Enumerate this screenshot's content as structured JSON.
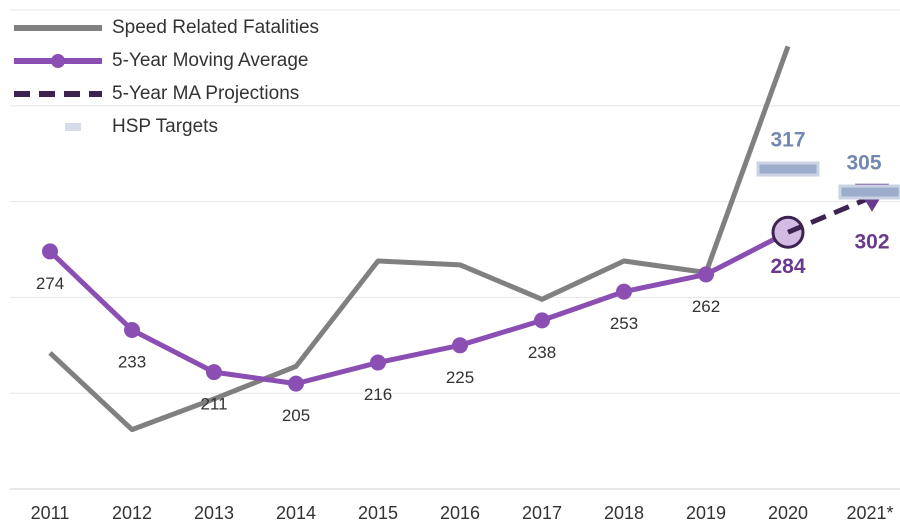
{
  "chart_data": {
    "type": "line",
    "categories": [
      "2011",
      "2012",
      "2013",
      "2014",
      "2015",
      "2016",
      "2017",
      "2018",
      "2019",
      "2020",
      "2021*"
    ],
    "ylim": [
      150,
      400
    ],
    "yticks": [
      150,
      200,
      250,
      300,
      350,
      400
    ],
    "grid": true,
    "legend": "upper left",
    "series": [
      {
        "name": "Speed Related Fatalities",
        "color": "#808080",
        "marker": "none",
        "values": [
          221,
          181,
          197,
          214,
          269,
          267,
          249,
          269,
          263,
          381,
          null
        ]
      },
      {
        "name": "5-Year Moving Average",
        "color": "#8b4fb3",
        "marker": "circle",
        "values": [
          274,
          233,
          211,
          205,
          216,
          225,
          238,
          253,
          262,
          284,
          null
        ]
      },
      {
        "name": "5-Year MA Projections",
        "color": "#3e2350",
        "marker": "triangle",
        "dashed": true,
        "values": [
          null,
          null,
          null,
          null,
          null,
          null,
          null,
          null,
          null,
          284,
          302
        ]
      },
      {
        "name": "HSP Targets",
        "color": "#a3b4d0",
        "marker": "bar",
        "values": [
          null,
          null,
          null,
          null,
          null,
          null,
          null,
          null,
          null,
          317,
          305
        ]
      }
    ]
  }
}
